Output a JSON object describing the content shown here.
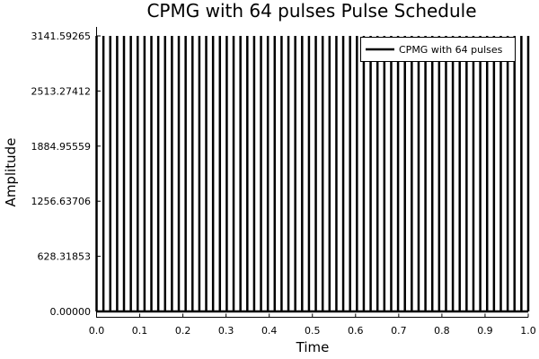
{
  "chart_data": {
    "type": "line",
    "title": "CPMG with 64 pulses Pulse Schedule",
    "xlabel": "Time",
    "ylabel": "Amplitude",
    "xlim": [
      0,
      1
    ],
    "ylim": [
      0,
      3141.59265
    ],
    "x_ticks": [
      "0.0",
      "0.1",
      "0.2",
      "0.3",
      "0.4",
      "0.5",
      "0.6",
      "0.7",
      "0.8",
      "0.9",
      "1.0"
    ],
    "y_ticks": [
      "0.00000",
      "628.31853",
      "1256.63706",
      "1884.95559",
      "2513.27412",
      "3141.59265"
    ],
    "legend_position": "top-right",
    "grid": false,
    "series": [
      {
        "name": "CPMG with 64 pulses",
        "color": "#000000",
        "pulse_amplitude": 3141.59265,
        "pulse_count": 64,
        "baseline": 0,
        "pulse_start": 0.0,
        "pulse_end": 1.0
      }
    ]
  }
}
